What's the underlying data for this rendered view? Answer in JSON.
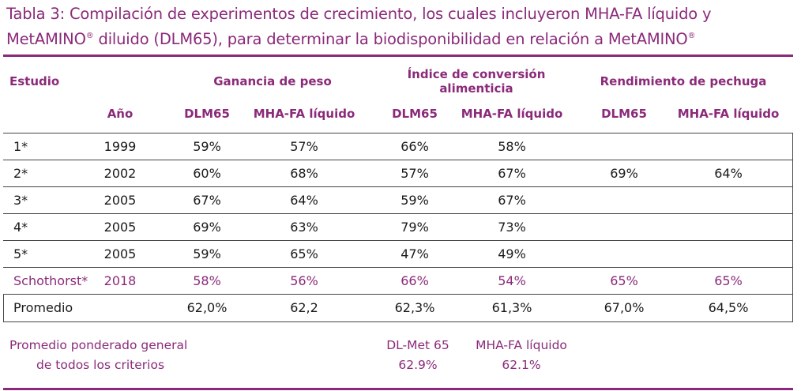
{
  "caption": {
    "line1": "Tabla 3: Compilación de experimentos de crecimiento, los cuales incluyeron MHA-FA líquido y",
    "line2_a": "MetAMINO",
    "line2_b": " diluido (DLM65), para determinar la biodisponibilidad en relación a MetAMINO",
    "reg": "®"
  },
  "header": {
    "estudio": "Estudio",
    "ganancia": "Ganancia de peso",
    "indice_1": "Índice de conversión",
    "indice_2": "alimenticia",
    "rendimiento": "Rendimiento de pechuga",
    "ano": "Año",
    "dlm65_a": "DLM65",
    "mha_a": "MHA-FA líquido",
    "dlm65_b": "DLM65",
    "mha_b": "MHA-FA líquido",
    "dlm65_c": "DLM65",
    "mha_c": "MHA-FA líquido"
  },
  "rows": [
    {
      "estudio": "1*",
      "ano": "1999",
      "g_dlm": "59%",
      "g_mha": "57%",
      "i_dlm": "66%",
      "i_mha": "58%",
      "r_dlm": "",
      "r_mha": ""
    },
    {
      "estudio": "2*",
      "ano": "2002",
      "g_dlm": "60%",
      "g_mha": "68%",
      "i_dlm": "57%",
      "i_mha": "67%",
      "r_dlm": "69%",
      "r_mha": "64%"
    },
    {
      "estudio": "3*",
      "ano": "2005",
      "g_dlm": "67%",
      "g_mha": "64%",
      "i_dlm": "59%",
      "i_mha": "67%",
      "r_dlm": "",
      "r_mha": ""
    },
    {
      "estudio": "4*",
      "ano": "2005",
      "g_dlm": "69%",
      "g_mha": "63%",
      "i_dlm": "79%",
      "i_mha": "73%",
      "r_dlm": "",
      "r_mha": ""
    },
    {
      "estudio": "5*",
      "ano": "2005",
      "g_dlm": "59%",
      "g_mha": "65%",
      "i_dlm": "47%",
      "i_mha": "49%",
      "r_dlm": "",
      "r_mha": ""
    },
    {
      "estudio": "Schothorst*",
      "ano": "2018",
      "g_dlm": "58%",
      "g_mha": "56%",
      "i_dlm": "66%",
      "i_mha": "54%",
      "r_dlm": "65%",
      "r_mha": "65%"
    },
    {
      "estudio": "Promedio",
      "ano": "",
      "g_dlm": "62,0%",
      "g_mha": "62,2",
      "i_dlm": "62,3%",
      "i_mha": "61,3%",
      "r_dlm": "67,0%",
      "r_mha": "64,5%"
    }
  ],
  "footer": {
    "label_1": "Promedio ponderado general",
    "label_2": "de todos los criterios",
    "dlmet_label": "DL-Met 65",
    "dlmet_value": "62.9%",
    "mha_label": "MHA-FA líquido",
    "mha_value": "62.1%"
  }
}
